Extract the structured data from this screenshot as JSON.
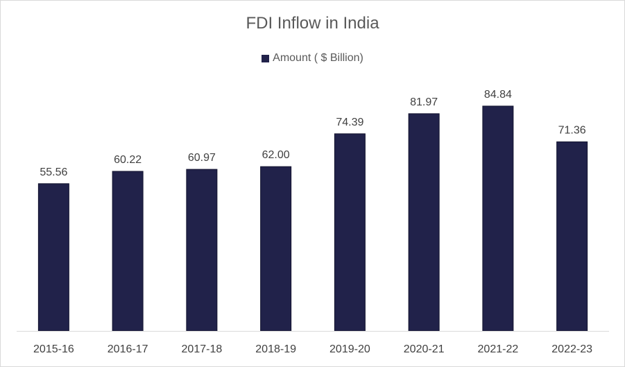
{
  "chart_data": {
    "type": "bar",
    "title": "FDI Inflow in India",
    "categories": [
      "2015-16",
      "2016-17",
      "2017-18",
      "2018-19",
      "2019-20",
      "2020-21",
      "2021-22",
      "2022-23"
    ],
    "series": [
      {
        "name": "Amount ( $ Billion)",
        "values": [
          55.56,
          60.22,
          60.97,
          62.0,
          74.39,
          81.97,
          84.84,
          71.36
        ],
        "labels": [
          "55.56",
          "60.22",
          "60.97",
          "62.00",
          "74.39",
          "81.97",
          "84.84",
          "71.36"
        ],
        "color": "#21224a"
      }
    ],
    "xlabel": "",
    "ylabel": "",
    "ylim": [
      0,
      90
    ],
    "grid": false,
    "legend_position": "top"
  }
}
